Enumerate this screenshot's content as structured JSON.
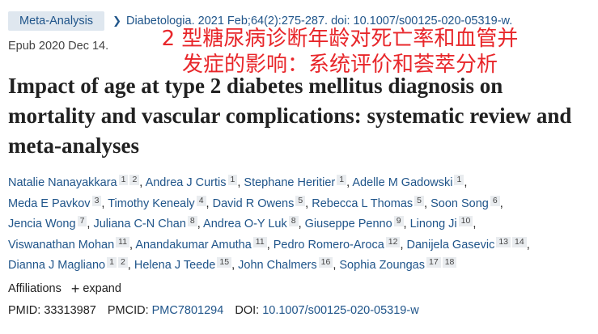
{
  "header": {
    "badge": "Meta-Analysis",
    "journal": "Diabetologia",
    "citation": ". 2021 Feb;64(2):275-287. doi: 10.1007/s00125-020-05319-w.",
    "epub": "Epub 2020 Dec 14."
  },
  "overlay": {
    "lines": [
      "2 型糖尿病诊断年龄对死亡率和血管并",
      "发症的影响：系统评价和荟萃分析"
    ]
  },
  "title": "Impact of age at type 2 diabetes mellitus diagnosis on mortality and vascular complications: systematic review and meta-analyses",
  "separator": ",",
  "authors": [
    {
      "name": "Natalie Nanayakkara",
      "affs": [
        "1",
        "2"
      ]
    },
    {
      "name": "Andrea J Curtis",
      "affs": [
        "1"
      ]
    },
    {
      "name": "Stephane Heritier",
      "affs": [
        "1"
      ]
    },
    {
      "name": "Adelle M Gadowski",
      "affs": [
        "1"
      ]
    },
    {
      "name": "Meda E Pavkov",
      "affs": [
        "3"
      ]
    },
    {
      "name": "Timothy Kenealy",
      "affs": [
        "4"
      ]
    },
    {
      "name": "David R Owens",
      "affs": [
        "5"
      ]
    },
    {
      "name": "Rebecca L Thomas",
      "affs": [
        "5"
      ]
    },
    {
      "name": "Soon Song",
      "affs": [
        "6"
      ]
    },
    {
      "name": "Jencia Wong",
      "affs": [
        "7"
      ]
    },
    {
      "name": "Juliana C-N Chan",
      "affs": [
        "8"
      ]
    },
    {
      "name": "Andrea O-Y Luk",
      "affs": [
        "8"
      ]
    },
    {
      "name": "Giuseppe Penno",
      "affs": [
        "9"
      ]
    },
    {
      "name": "Linong Ji",
      "affs": [
        "10"
      ]
    },
    {
      "name": "Viswanathan Mohan",
      "affs": [
        "11"
      ]
    },
    {
      "name": "Anandakumar Amutha",
      "affs": [
        "11"
      ]
    },
    {
      "name": "Pedro Romero-Aroca",
      "affs": [
        "12"
      ]
    },
    {
      "name": "Danijela Gasevic",
      "affs": [
        "13",
        "14"
      ]
    },
    {
      "name": "Dianna J Magliano",
      "affs": [
        "1",
        "2"
      ]
    },
    {
      "name": "Helena J Teede",
      "affs": [
        "15"
      ]
    },
    {
      "name": "John Chalmers",
      "affs": [
        "16"
      ]
    },
    {
      "name": "Sophia Zoungas",
      "affs": [
        "17",
        "18"
      ]
    }
  ],
  "affiliations": {
    "label": "Affiliations",
    "action": "expand"
  },
  "ids": {
    "pmid_label": "PMID:",
    "pmid": "33313987",
    "pmcid_label": "PMCID:",
    "pmcid": "PMC7801294",
    "doi_label": "DOI:",
    "doi": "10.1007/s00125-020-05319-w"
  }
}
